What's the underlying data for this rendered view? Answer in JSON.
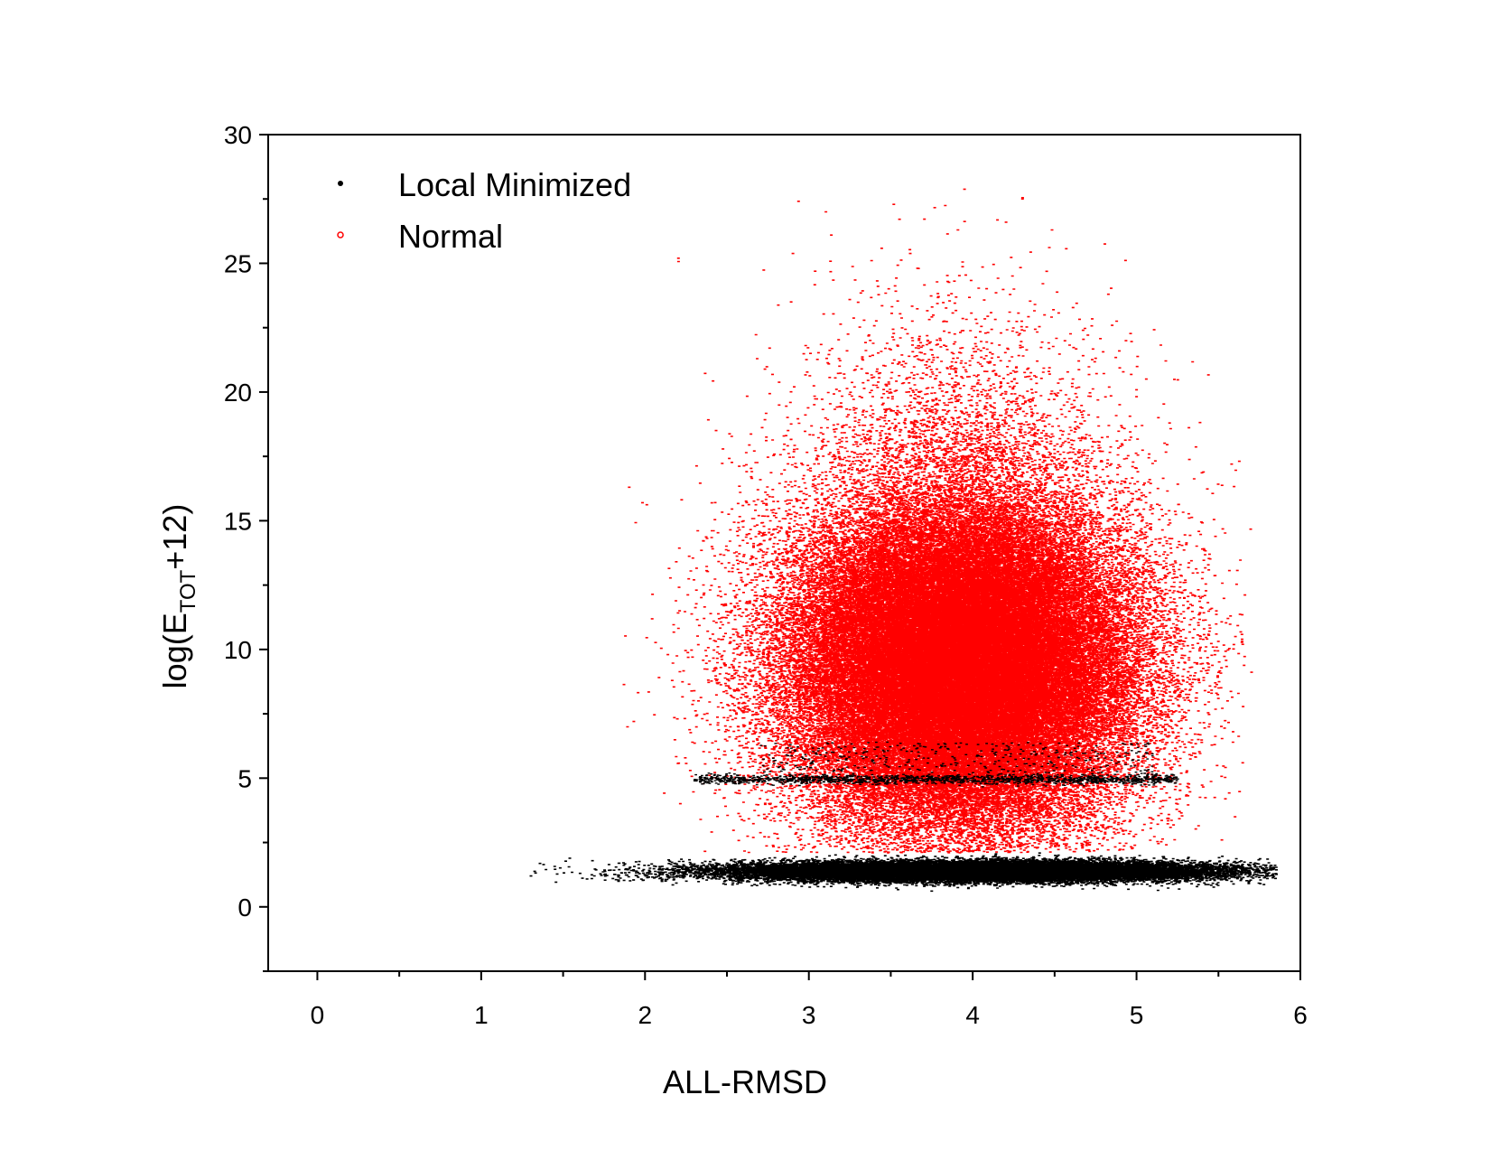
{
  "chart_data": {
    "type": "scatter",
    "xlabel": "ALL-RMSD",
    "ylabel": {
      "prefix": "log(E",
      "subscript": "TOT",
      "suffix": "+12)"
    },
    "xlim": [
      -0.3,
      6
    ],
    "ylim": [
      -2.5,
      30
    ],
    "xticks": [
      0,
      1,
      2,
      3,
      4,
      5,
      6
    ],
    "xtick_labels": [
      "0",
      "1",
      "2",
      "3",
      "4",
      "5",
      "6"
    ],
    "yticks": [
      0,
      5,
      10,
      15,
      20,
      25,
      30
    ],
    "ytick_labels": [
      "0",
      "5",
      "10",
      "15",
      "20",
      "25",
      "30"
    ],
    "legend_position": "top-left",
    "series": [
      {
        "name": "Local Minimized",
        "color": "#000000",
        "marker": "dot",
        "approx_points": [
          [
            1.3,
            1.2
          ],
          [
            1.6,
            1.3
          ],
          [
            1.8,
            1.1
          ],
          [
            2.0,
            1.2
          ],
          [
            2.2,
            1.3
          ],
          [
            2.4,
            1.3
          ],
          [
            2.6,
            1.3
          ],
          [
            2.8,
            1.3
          ],
          [
            3.0,
            1.3
          ],
          [
            3.2,
            1.4
          ],
          [
            3.4,
            1.4
          ],
          [
            3.6,
            1.4
          ],
          [
            3.8,
            1.4
          ],
          [
            4.0,
            1.4
          ],
          [
            4.2,
            1.4
          ],
          [
            4.4,
            1.4
          ],
          [
            4.6,
            1.4
          ],
          [
            4.8,
            1.4
          ],
          [
            5.0,
            1.4
          ],
          [
            5.2,
            1.4
          ],
          [
            5.4,
            1.4
          ],
          [
            5.6,
            1.3
          ],
          [
            5.8,
            1.3
          ],
          [
            2.3,
            4.9
          ],
          [
            2.8,
            4.9
          ],
          [
            3.2,
            5.0
          ],
          [
            3.6,
            5.0
          ],
          [
            4.0,
            5.0
          ],
          [
            4.4,
            5.0
          ],
          [
            4.8,
            4.9
          ],
          [
            5.2,
            4.9
          ]
        ]
      },
      {
        "name": "Normal",
        "color": "#ff0000",
        "marker": "dot",
        "approx_points": [
          [
            1.9,
            16.3
          ],
          [
            2.2,
            25.2
          ],
          [
            3.1,
            27.0
          ],
          [
            4.2,
            26.6
          ],
          [
            4.3,
            27.5
          ],
          [
            5.6,
            10.5
          ],
          [
            3.0,
            9.0
          ],
          [
            3.5,
            9.5
          ],
          [
            3.8,
            9.0
          ],
          [
            4.0,
            8.5
          ],
          [
            4.3,
            8.0
          ],
          [
            4.6,
            7.5
          ],
          [
            3.2,
            12.0
          ],
          [
            3.7,
            13.0
          ],
          [
            4.1,
            12.5
          ],
          [
            4.5,
            11.0
          ],
          [
            2.6,
            7.0
          ],
          [
            5.0,
            6.5
          ],
          [
            3.8,
            17.0
          ],
          [
            4.2,
            16.0
          ]
        ]
      }
    ]
  }
}
